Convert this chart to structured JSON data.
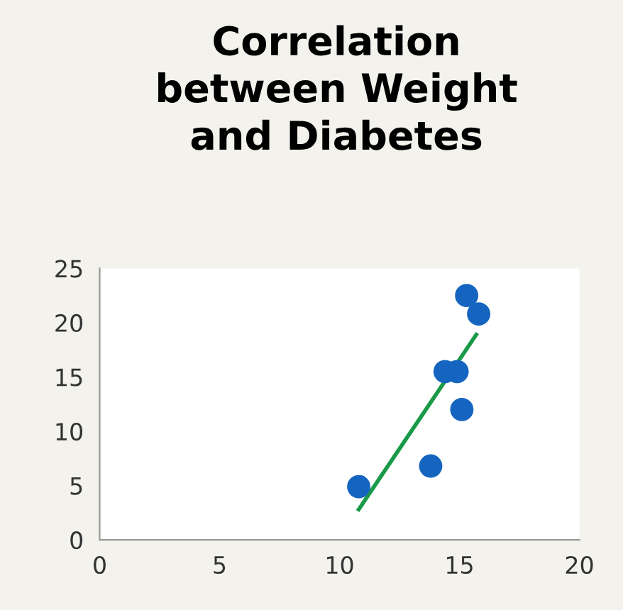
{
  "chart_data": {
    "type": "scatter",
    "title": "Correlation\nbetween Weight\nand Diabetes",
    "series": [
      {
        "color": "#1565c0",
        "x": [
          10.8,
          13.8,
          14.4,
          14.9,
          15.1,
          15.3,
          15.8
        ],
        "values": [
          4.9,
          6.8,
          15.5,
          15.5,
          12.0,
          22.5,
          20.8
        ]
      },
      {
        "type": "line",
        "color": "#1a9a48",
        "x": [
          10.8,
          15.7
        ],
        "values": [
          2.8,
          18.9
        ]
      }
    ],
    "xlim": [
      0,
      20
    ],
    "xticks": [
      0,
      5,
      10,
      15,
      20
    ],
    "ylim": [
      0,
      25
    ],
    "yticks": [
      0,
      5,
      10,
      15,
      20,
      25
    ],
    "grid": false,
    "legend": false
  }
}
